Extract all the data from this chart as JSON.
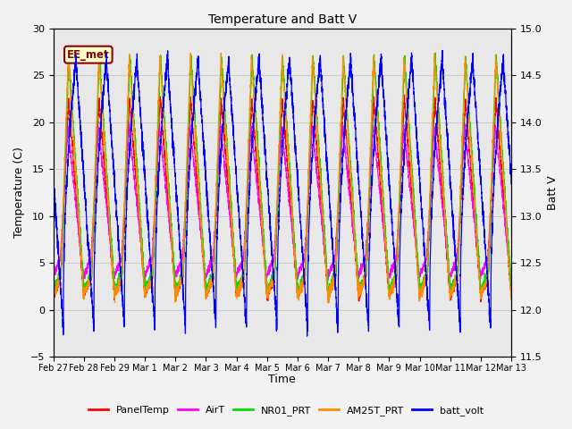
{
  "title": "Temperature and Batt V",
  "xlabel": "Time",
  "ylabel_left": "Temperature (C)",
  "ylabel_right": "Batt V",
  "annotation_text": "EE_met",
  "annotation_color": "#8B0000",
  "annotation_bg": "#FFFFCC",
  "ylim_left": [
    -5,
    30
  ],
  "ylim_right": [
    11.5,
    15.0
  ],
  "yticks_left": [
    -5,
    0,
    5,
    10,
    15,
    20,
    25,
    30
  ],
  "yticks_right": [
    11.5,
    12.0,
    12.5,
    13.0,
    13.5,
    14.0,
    14.5,
    15.0
  ],
  "xtick_labels": [
    "Feb 27",
    "Feb 28",
    "Feb 29",
    "Mar 1",
    "Mar 2",
    "Mar 3",
    "Mar 4",
    "Mar 5",
    "Mar 6",
    "Mar 7",
    "Mar 8",
    "Mar 9",
    "Mar 10",
    "Mar 11",
    "Mar 12",
    "Mar 13"
  ],
  "grid_color": "#cccccc",
  "plot_bg": "#e8e8e8",
  "fig_bg": "#f2f2f2",
  "series": {
    "PanelTemp": {
      "color": "#FF0000",
      "lw": 0.8
    },
    "AirT": {
      "color": "#FF00FF",
      "lw": 0.8
    },
    "NR01_PRT": {
      "color": "#00DD00",
      "lw": 0.8
    },
    "AM25T_PRT": {
      "color": "#FF8C00",
      "lw": 0.8
    },
    "batt_volt": {
      "color": "#0000FF",
      "lw": 0.9
    }
  },
  "legend_labels": [
    "PanelTemp",
    "AirT",
    "NR01_PRT",
    "AM25T_PRT",
    "batt_volt"
  ],
  "legend_colors": [
    "#FF0000",
    "#FF00FF",
    "#00DD00",
    "#FF8C00",
    "#0000FF"
  ],
  "n_days": 15,
  "pts_per_day": 288
}
